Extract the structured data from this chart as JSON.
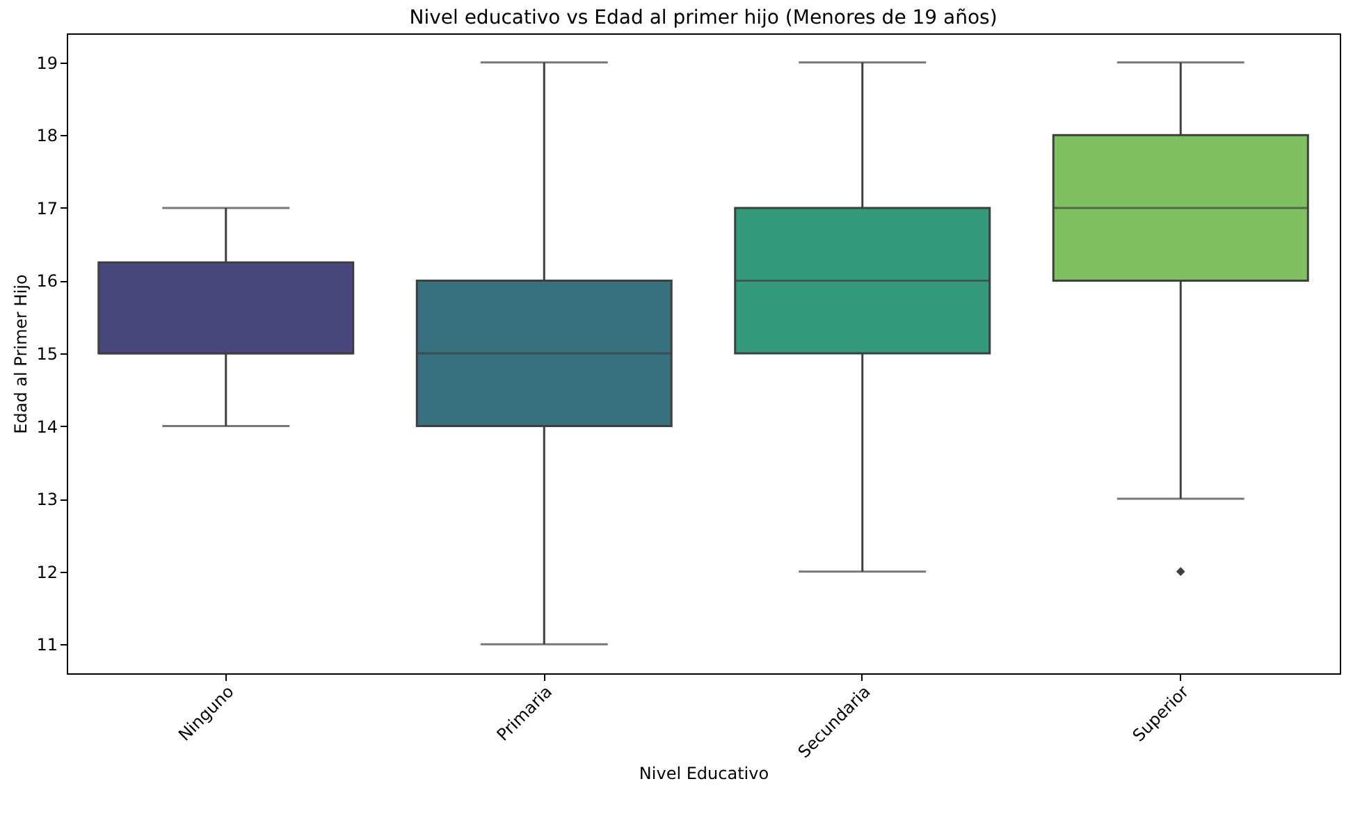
{
  "chart_data": {
    "type": "box",
    "title": "Nivel educativo vs Edad al primer hijo (Menores de 19 años)",
    "xlabel": "Nivel Educativo",
    "ylabel": "Edad al Primer Hijo",
    "categories": [
      "Ninguno",
      "Primaria",
      "Secundaria",
      "Superior"
    ],
    "colors": [
      "#4a467e",
      "#37717e",
      "#35997b",
      "#7fc160"
    ],
    "boxes": [
      {
        "low": 14,
        "q1": 15,
        "median": 15,
        "q3": 16.25,
        "high": 17
      },
      {
        "low": 11,
        "q1": 14,
        "median": 15,
        "q3": 16,
        "high": 19
      },
      {
        "low": 12,
        "q1": 15,
        "median": 16,
        "q3": 17,
        "high": 19
      },
      {
        "low": 13,
        "q1": 16,
        "median": 17,
        "q3": 18,
        "high": 19,
        "outliers": [
          12
        ]
      }
    ],
    "ylim": [
      10.6,
      19.4
    ],
    "yticks": [
      11,
      12,
      13,
      14,
      15,
      16,
      17,
      18,
      19
    ]
  }
}
